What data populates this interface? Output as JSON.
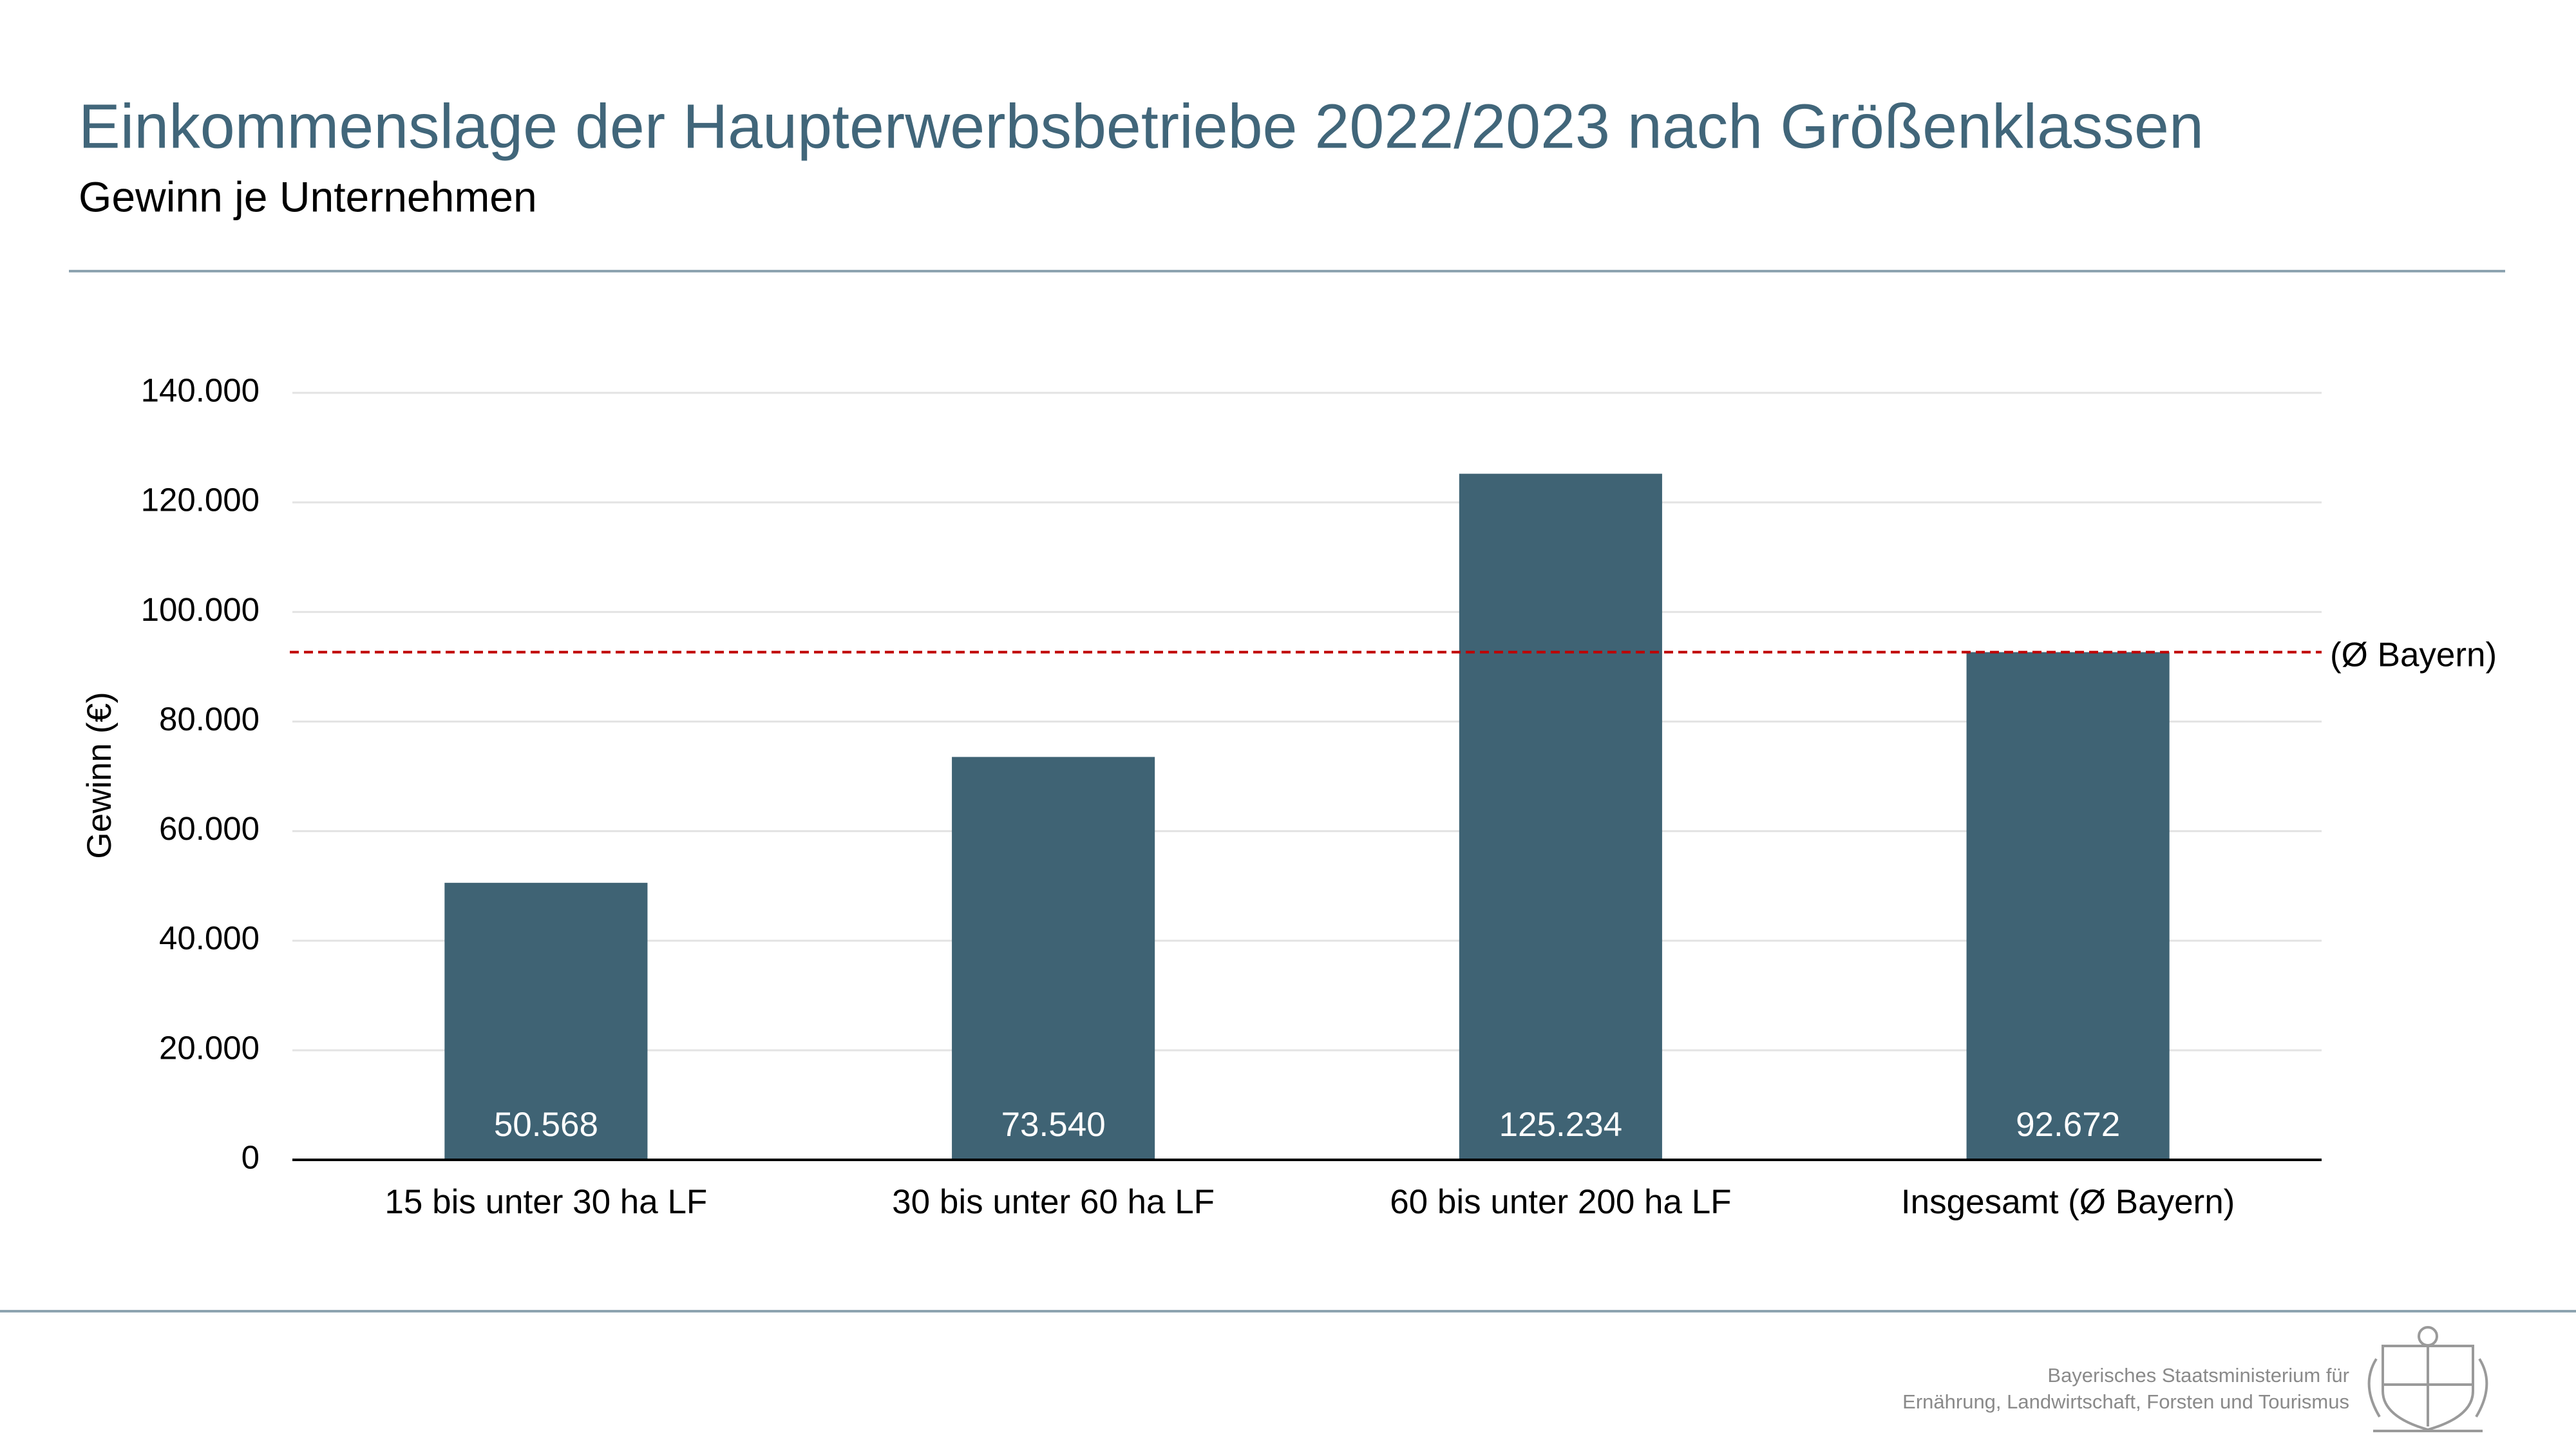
{
  "chart_data": {
    "type": "bar",
    "title": "Einkommenslage der Haupterwerbsbetriebe 2022/2023 nach Größenklassen",
    "subtitle": "Gewinn je Unternehmen",
    "y_label": "Gewinn (€)",
    "categories": [
      "15 bis unter 30 ha LF",
      "30 bis unter 60 ha LF",
      "60 bis unter 200 ha LF",
      "Insgesamt (Ø Bayern)"
    ],
    "values": [
      50568,
      73540,
      125234,
      92672
    ],
    "value_labels": [
      "50.568",
      "73.540",
      "125.234",
      "92.672"
    ],
    "color": "#3f6374",
    "ylim": [
      0,
      140000
    ],
    "yticks": [
      0,
      {
        "value": 20000,
        "label": "20.000"
      },
      {
        "value": 40000,
        "label": "40.000"
      },
      {
        "value": 60000,
        "label": "60.000"
      },
      {
        "value": 80000,
        "label": "80.000"
      },
      {
        "value": 100000,
        "label": "100.000"
      },
      {
        "value": 120000,
        "label": "120.000"
      },
      {
        "value": 140000,
        "label": "140.000"
      }
    ],
    "grid": true,
    "reference_line": {
      "value": 92672,
      "label": "(Ø Bayern)",
      "color": "#c00000"
    }
  },
  "footer": {
    "line1": "Bayerisches Staatsministerium für",
    "line2": "Ernährung, Landwirtschaft, Forsten und Tourismus"
  }
}
